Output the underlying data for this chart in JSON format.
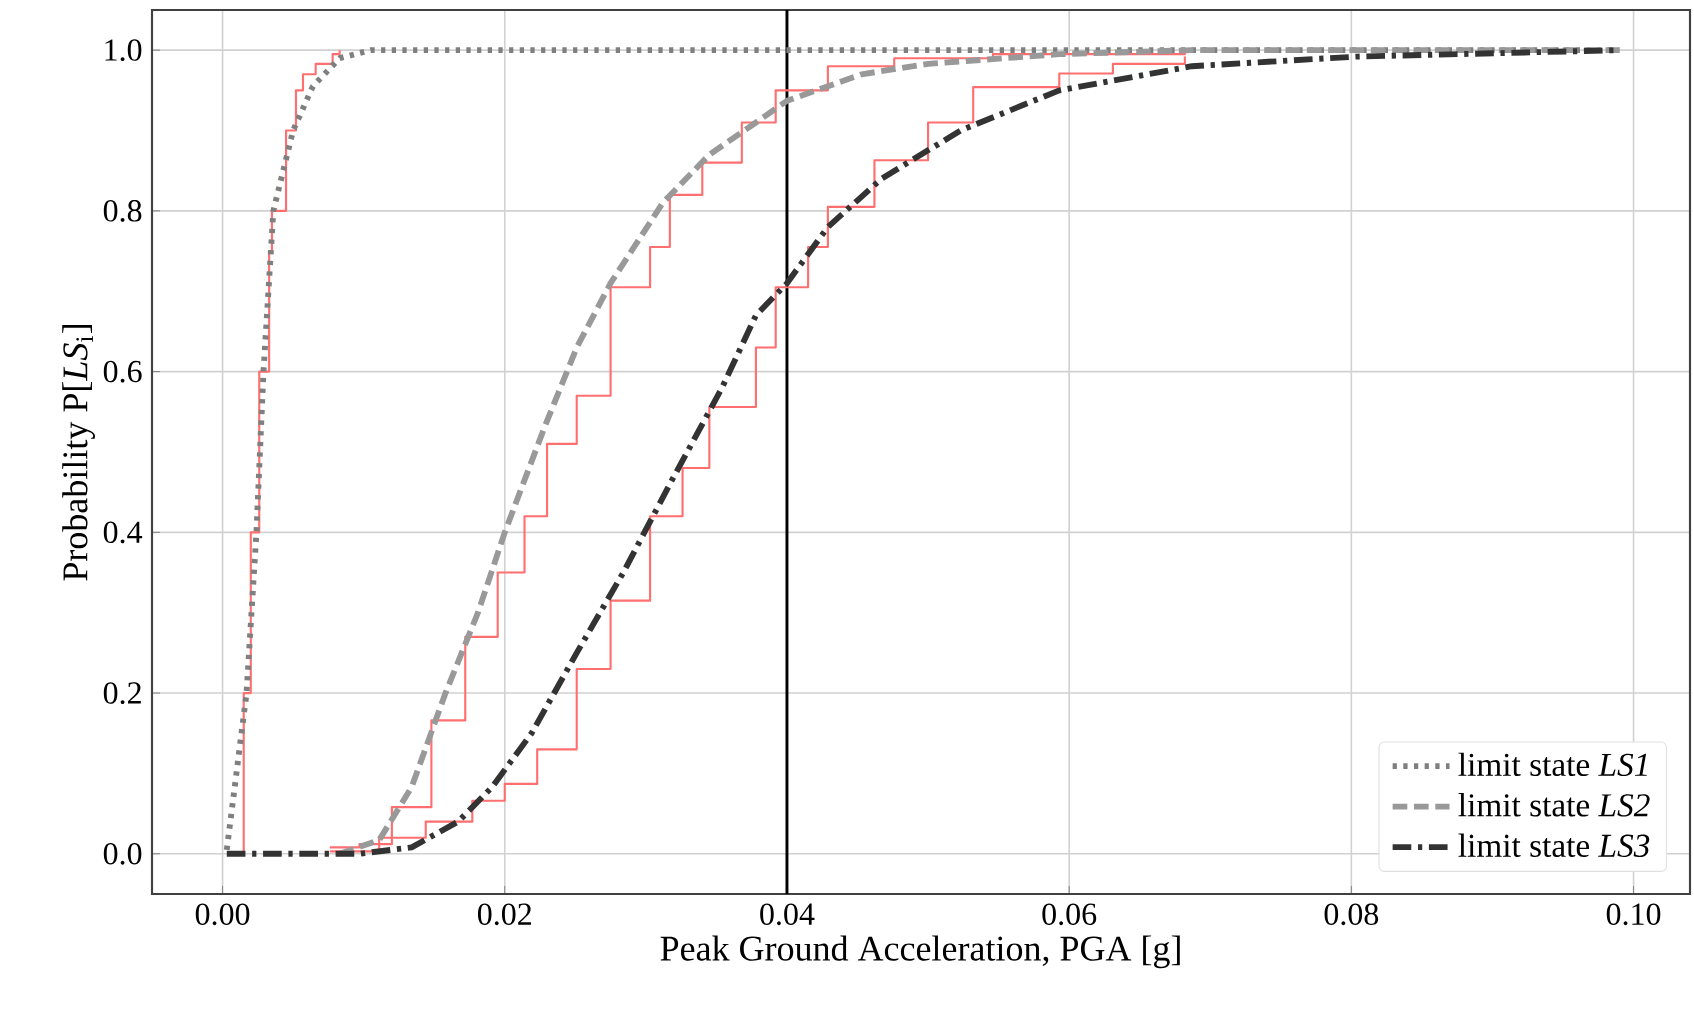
{
  "chart_data": {
    "type": "line",
    "xlabel": "Peak Ground Acceleration, PGA [g]",
    "ylabel": "Probability P[*LS*$_{i}$]",
    "xlim": [
      -0.005,
      0.104
    ],
    "ylim": [
      -0.05,
      1.05
    ],
    "xticks": [
      {
        "value": 0,
        "label": "0.00"
      },
      {
        "value": 0.02,
        "label": "0.02"
      },
      {
        "value": 0.04,
        "label": "0.04"
      },
      {
        "value": 0.06,
        "label": "0.06"
      },
      {
        "value": 0.08,
        "label": "0.08"
      },
      {
        "value": 0.1,
        "label": "0.10"
      }
    ],
    "yticks": [
      {
        "value": 0,
        "label": "0.0"
      },
      {
        "value": 0.2,
        "label": "0.2"
      },
      {
        "value": 0.4,
        "label": "0.4"
      },
      {
        "value": 0.6,
        "label": "0.6"
      },
      {
        "value": 0.8,
        "label": "0.8"
      },
      {
        "value": 1,
        "label": "1.0"
      }
    ],
    "grid": true,
    "legend": "bottom right",
    "ref_lines": [
      {
        "axis": "x",
        "value": 0.04,
        "color": "#000000"
      }
    ],
    "series": [
      {
        "type": "step",
        "color": "#ff6f6f",
        "x": [
          0.0005,
          0.0015,
          0.002,
          0.0026,
          0.0033,
          0.0035,
          0.0045,
          0.0052,
          0.0057,
          0.0066,
          0.0078,
          0.0083
        ],
        "values": [
          0,
          0.2,
          0.4,
          0.6,
          0.75,
          0.8,
          0.9,
          0.95,
          0.97,
          0.983,
          0.995,
          1.0
        ]
      },
      {
        "type": "step",
        "color": "#ff6f6f",
        "x": [
          0.0076,
          0.0097,
          0.012,
          0.0148,
          0.0172,
          0.0195,
          0.0214,
          0.023,
          0.0251,
          0.0275,
          0.0303,
          0.0317,
          0.034,
          0.0368,
          0.0392,
          0.0429,
          0.0476,
          0.0546,
          0.0682
        ],
        "values": [
          0.008,
          0.012,
          0.058,
          0.166,
          0.27,
          0.35,
          0.42,
          0.51,
          0.57,
          0.705,
          0.755,
          0.82,
          0.86,
          0.91,
          0.95,
          0.98,
          0.99,
          0.995,
          1.0
        ]
      },
      {
        "type": "step",
        "color": "#ff6f6f",
        "x": [
          0.0076,
          0.0111,
          0.0144,
          0.0177,
          0.02,
          0.0223,
          0.0251,
          0.0275,
          0.0303,
          0.0326,
          0.0345,
          0.0378,
          0.0392,
          0.0415,
          0.0429,
          0.0462,
          0.05,
          0.0532,
          0.0593,
          0.0631,
          0.0682
        ],
        "values": [
          0.003,
          0.02,
          0.04,
          0.066,
          0.087,
          0.13,
          0.23,
          0.315,
          0.42,
          0.48,
          0.556,
          0.63,
          0.705,
          0.755,
          0.805,
          0.863,
          0.91,
          0.954,
          0.971,
          0.983,
          0.992
        ]
      },
      {
        "name": "limit state *LS1*",
        "color": "#7f7f7f",
        "line_style": "dotted",
        "x": [
          0.0003,
          0.0017,
          0.0024,
          0.0029,
          0.0036,
          0.005,
          0.0064,
          0.0083,
          0.0105,
          0.099
        ],
        "values": [
          0.005,
          0.2,
          0.4,
          0.6,
          0.8,
          0.9,
          0.955,
          0.99,
          1.0,
          1.0
        ]
      },
      {
        "name": "limit state *LS2*",
        "color": "#999999",
        "line_style": "dashed",
        "x": [
          0.0083,
          0.0111,
          0.0134,
          0.0158,
          0.0181,
          0.02,
          0.0228,
          0.0251,
          0.0275,
          0.0312,
          0.0345,
          0.0378,
          0.04,
          0.0453,
          0.05,
          0.0593,
          0.0687,
          0.099
        ],
        "values": [
          0,
          0.017,
          0.083,
          0.2,
          0.3,
          0.4,
          0.53,
          0.63,
          0.71,
          0.81,
          0.87,
          0.91,
          0.937,
          0.97,
          0.983,
          0.995,
          1.0,
          1.0
        ]
      },
      {
        "name": "limit state *LS3*",
        "color": "#333333",
        "line_style": "dashdot",
        "x": [
          0.0003,
          0.0097,
          0.0134,
          0.0167,
          0.0191,
          0.0219,
          0.0251,
          0.0284,
          0.0317,
          0.0354,
          0.0378,
          0.04,
          0.0429,
          0.0467,
          0.0523,
          0.0593,
          0.0687,
          0.0804,
          0.099
        ],
        "values": [
          0,
          0,
          0.008,
          0.04,
          0.083,
          0.15,
          0.25,
          0.35,
          0.46,
          0.58,
          0.67,
          0.71,
          0.78,
          0.84,
          0.9,
          0.95,
          0.98,
          0.992,
          1.0
        ]
      }
    ]
  }
}
